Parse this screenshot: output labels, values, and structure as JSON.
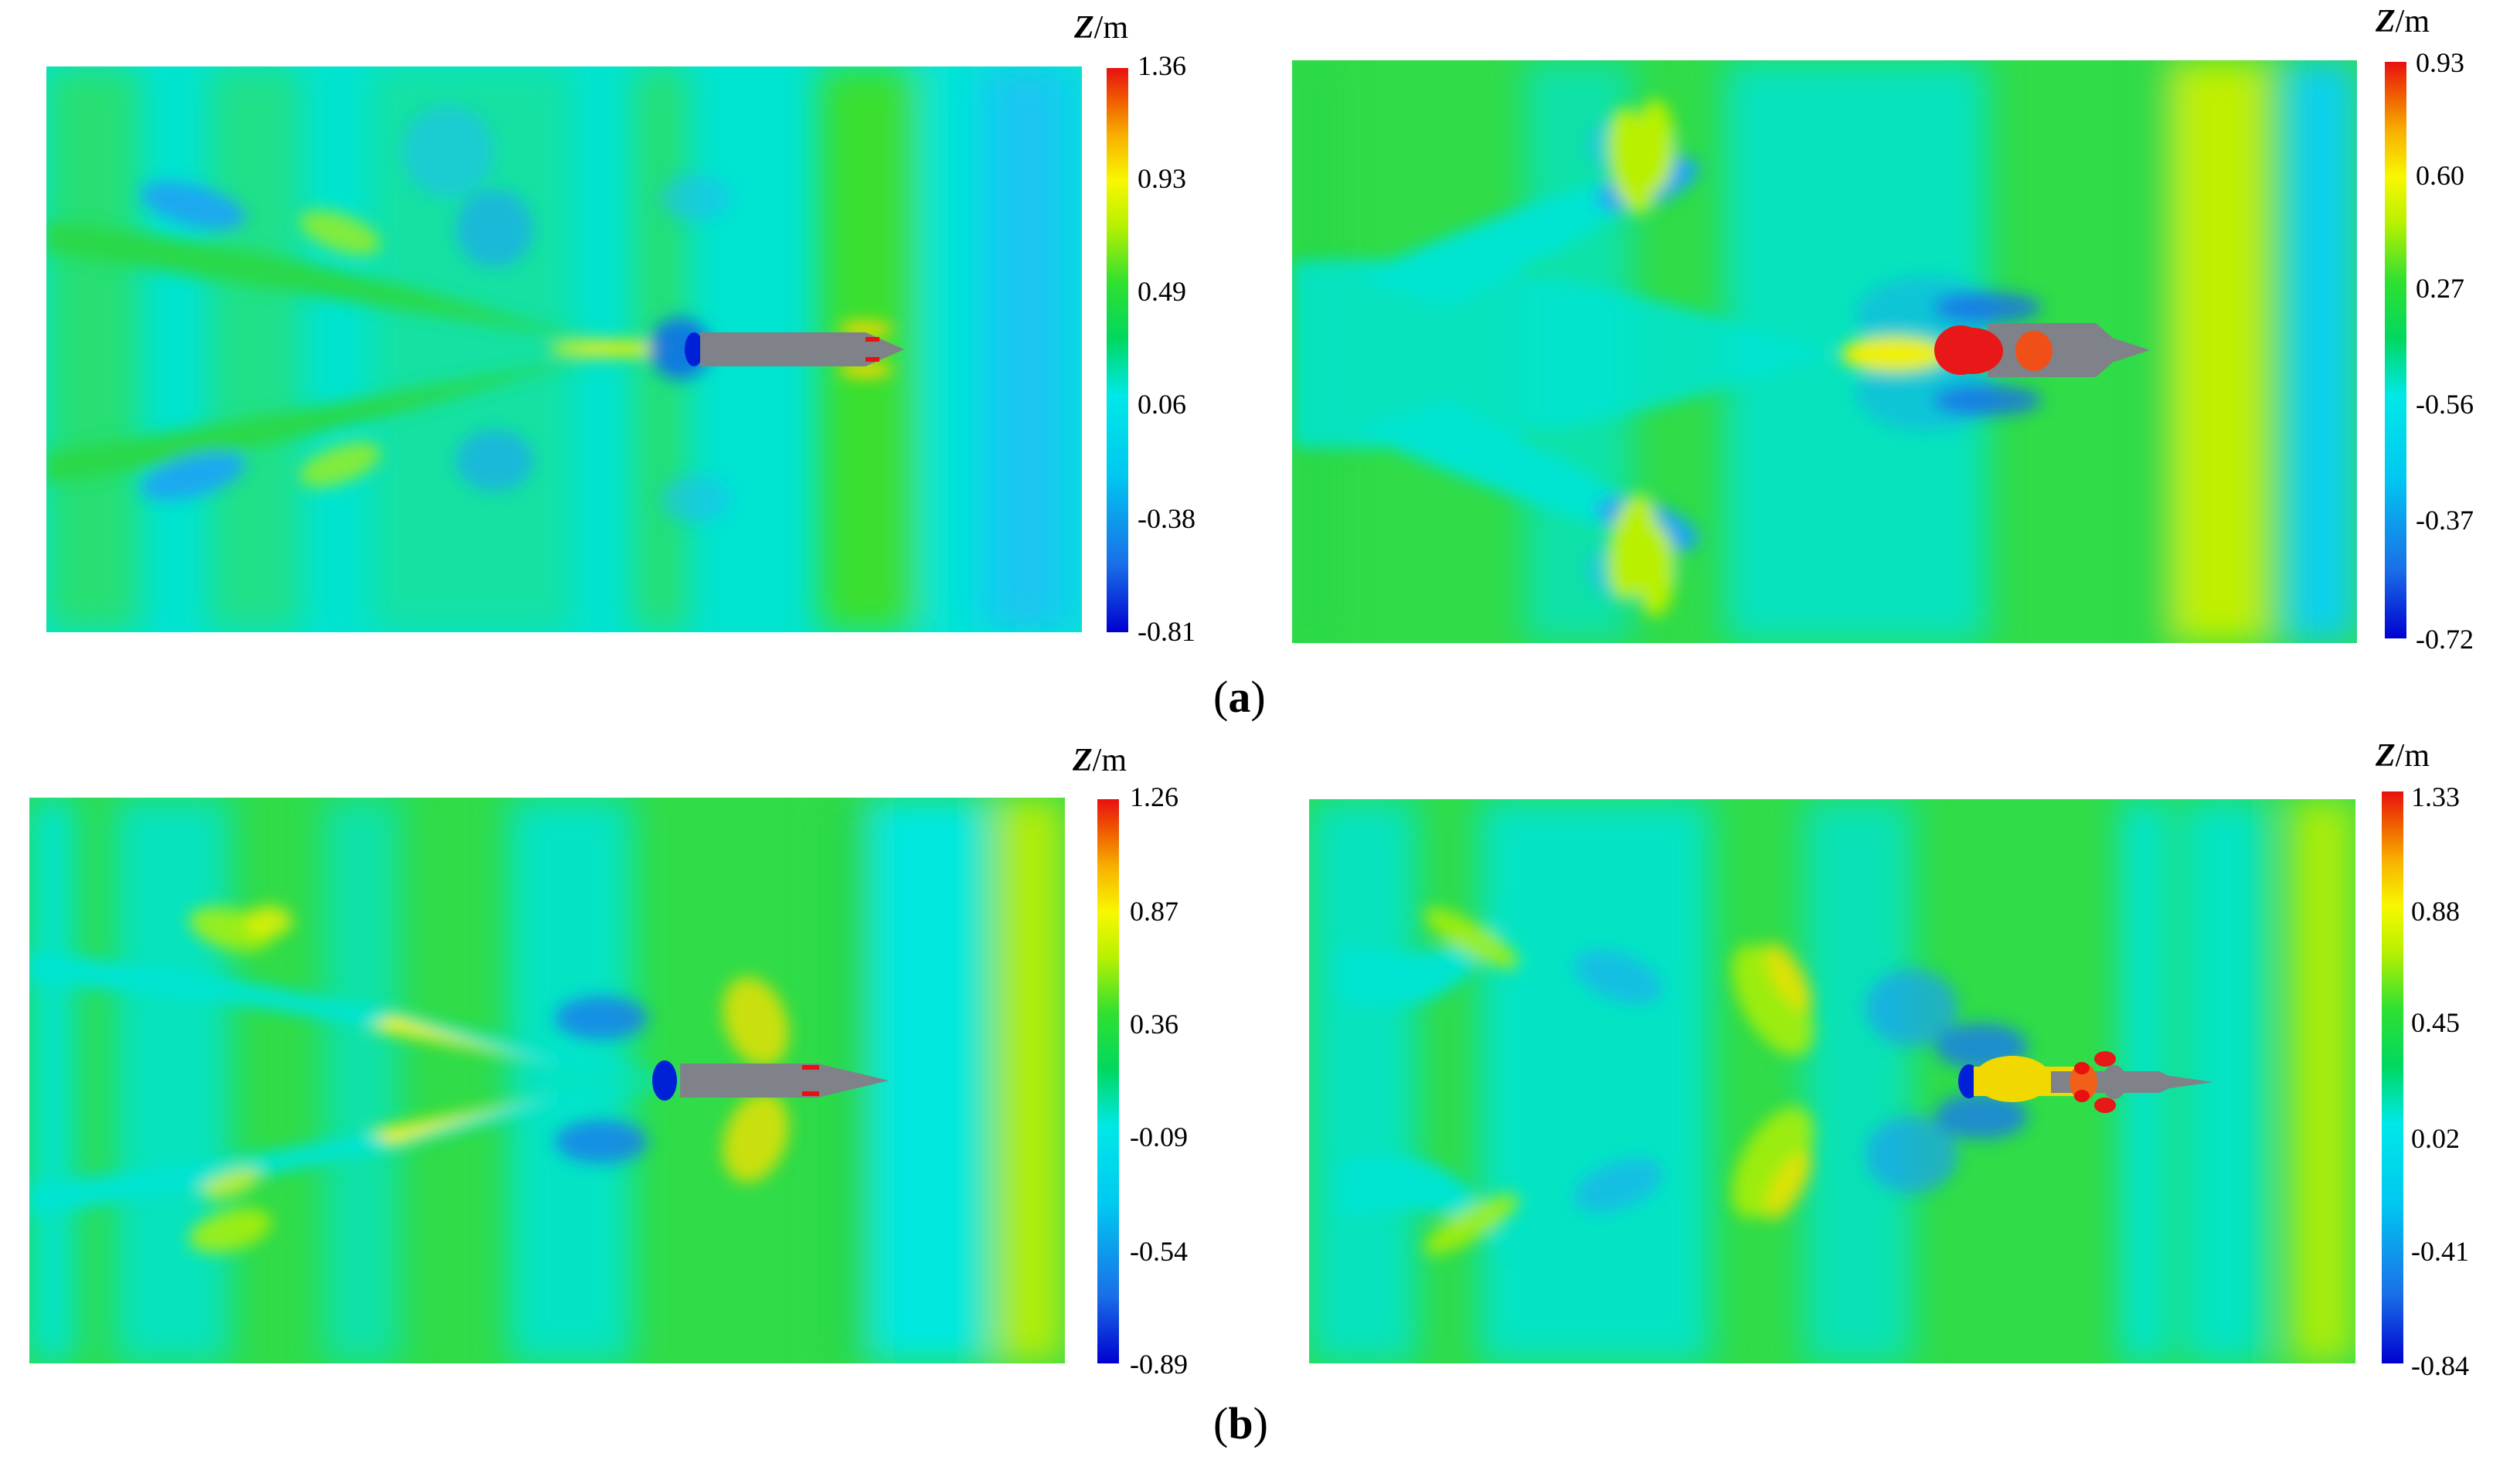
{
  "colorbar_title": "Z/m",
  "colorbar_stops": [
    "#0000d0",
    "#1a6fe8",
    "#00c8f0",
    "#00e8e8",
    "#00d860",
    "#30e030",
    "#b8f000",
    "#f8f800",
    "#f8b000",
    "#f06000",
    "#e81010"
  ],
  "panels": [
    {
      "id": "a-left",
      "ticks": [
        "1.36",
        "0.93",
        "0.49",
        "0.06",
        "-0.38",
        "-0.81"
      ]
    },
    {
      "id": "a-right",
      "ticks": [
        "0.93",
        "0.60",
        "0.27",
        "-0.56",
        "-0.37",
        "-0.72"
      ]
    },
    {
      "id": "b-left",
      "ticks": [
        "1.26",
        "0.87",
        "0.36",
        "-0.09",
        "-0.54",
        "-0.89"
      ]
    },
    {
      "id": "b-right",
      "ticks": [
        "1.33",
        "0.88",
        "0.45",
        "0.02",
        "-0.41",
        "-0.84"
      ]
    }
  ],
  "captions": {
    "a": "a",
    "b": "b"
  }
}
